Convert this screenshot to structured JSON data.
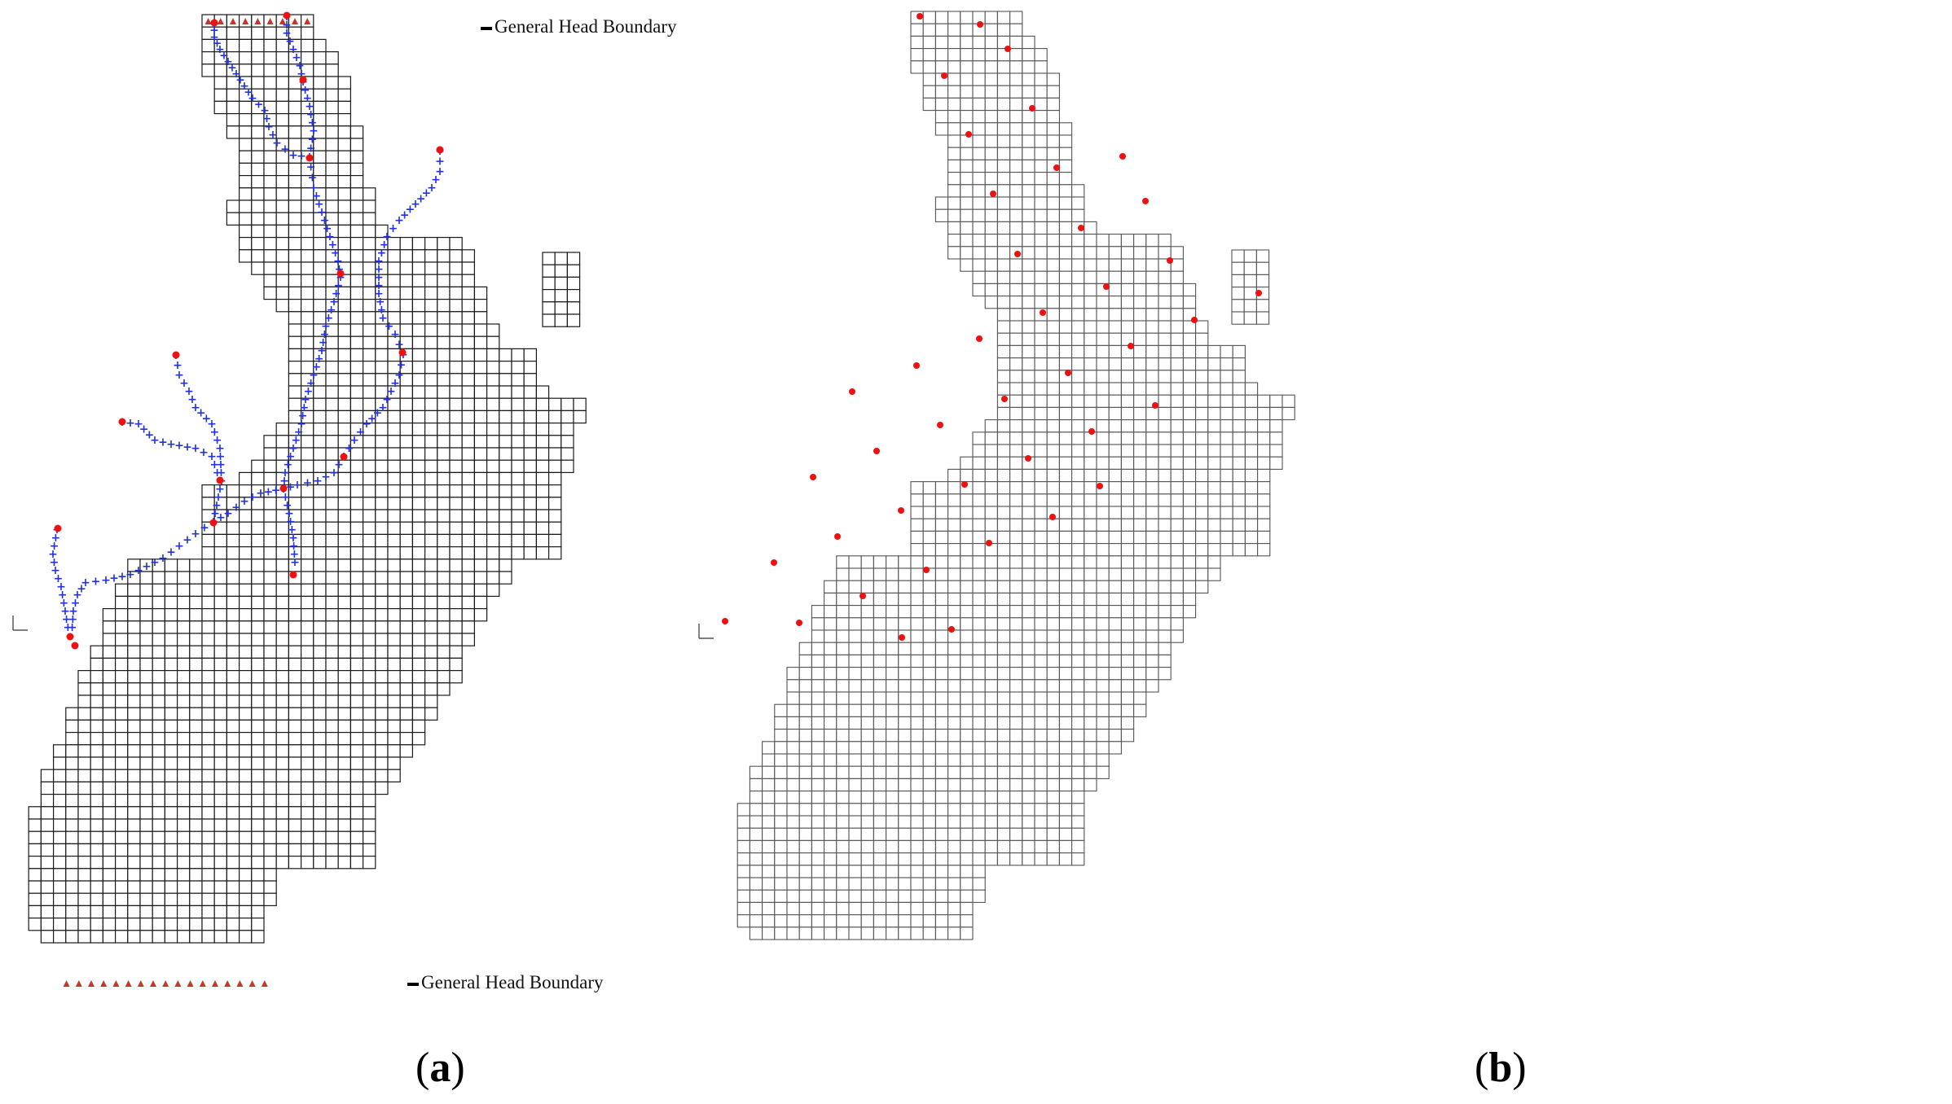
{
  "figure": {
    "panels": [
      {
        "id": "a",
        "label": "a",
        "annotations": {
          "ghb_top": "General Head Boundary",
          "ghb_bottom": "General Head Boundary"
        },
        "axis_icon": "xy-axes-icon"
      },
      {
        "id": "b",
        "label": "b",
        "axis_icon": "xy-axes-icon"
      }
    ],
    "colors": {
      "grid_a": "#1a1a1a",
      "grid_b": "#555555",
      "stream_marker": "#2233dd",
      "point_marker": "#ee1111",
      "ghb_marker": "#c0392b"
    }
  }
}
